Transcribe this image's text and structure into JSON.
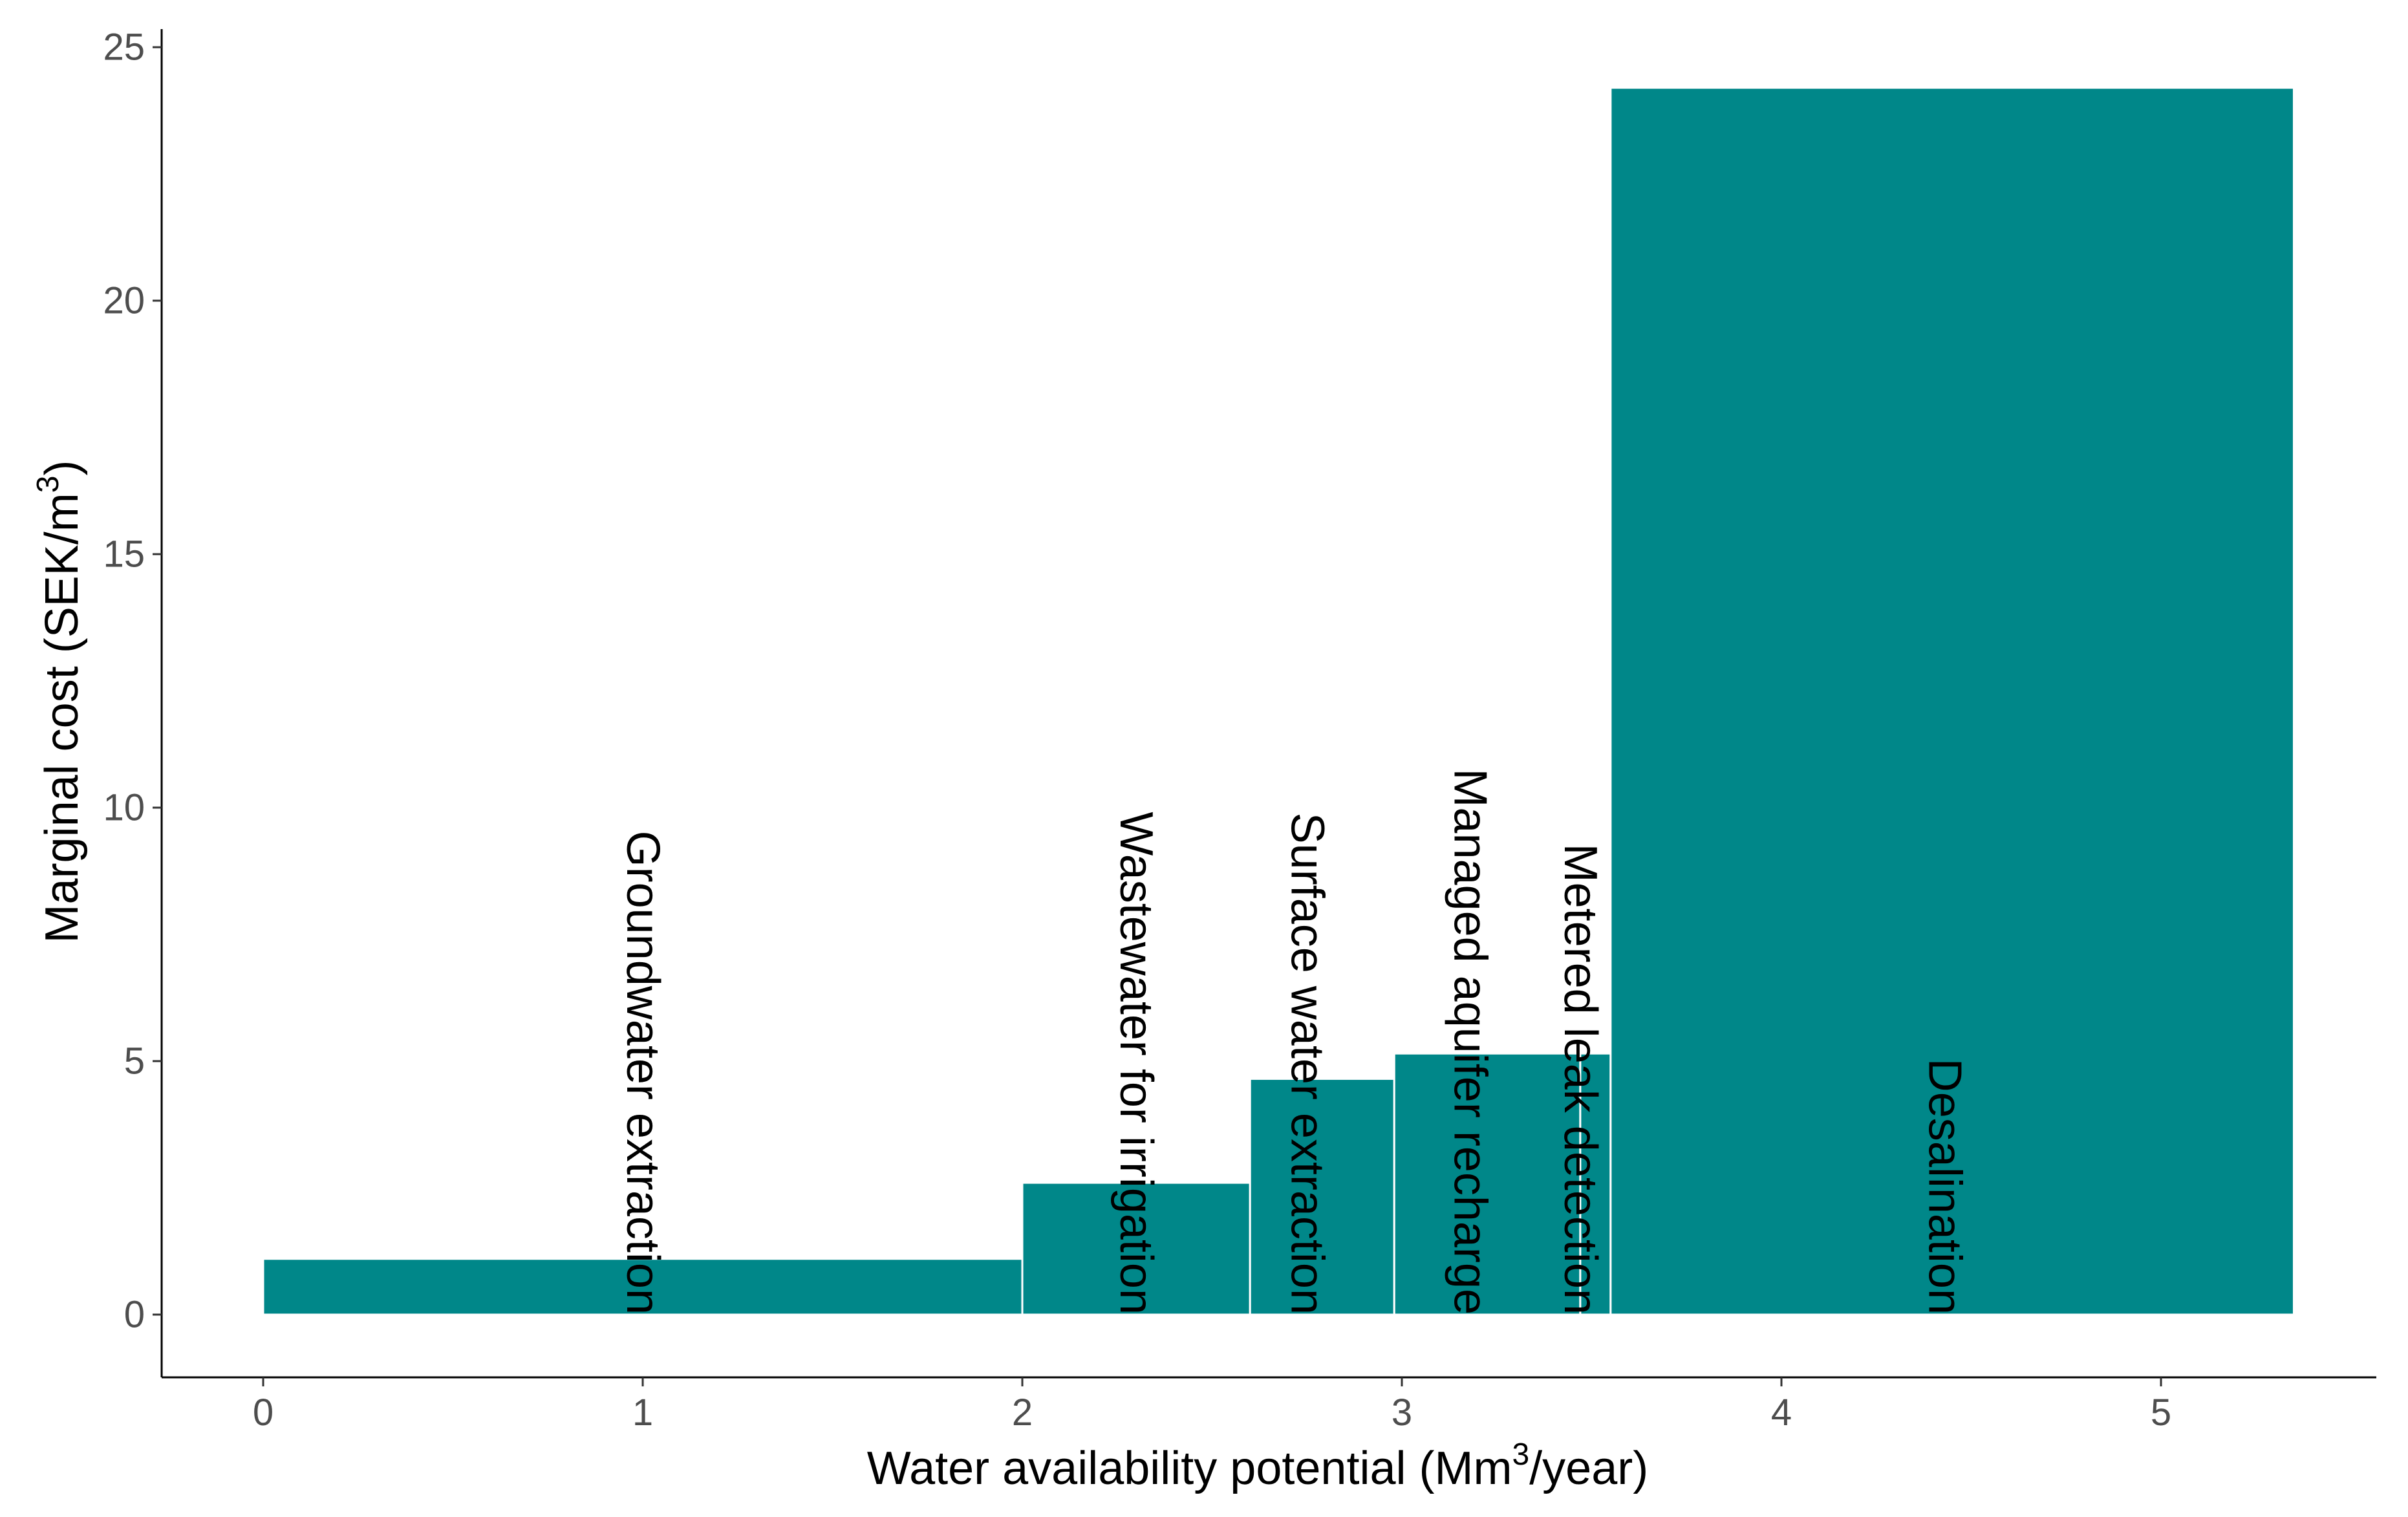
{
  "chart_data": {
    "type": "bar",
    "subtype": "variable-width marginal cost curve",
    "title": "",
    "xlabel": {
      "prefix": "Water availability potential (Mm",
      "superscript": "3",
      "suffix": "/year)"
    },
    "ylabel": {
      "prefix": "Marginal cost (SEK/m",
      "superscript": "3",
      "suffix": ")"
    },
    "xlim": [
      0,
      5.55
    ],
    "ylim": [
      0,
      25.5
    ],
    "x_ticks": [
      "0",
      "1",
      "2",
      "3",
      "4",
      "5"
    ],
    "y_ticks": [
      "0",
      "5",
      "10",
      "15",
      "20",
      "25"
    ],
    "grid": false,
    "legend": "none",
    "bar_color": "#008789",
    "bar_outline_color": "#ffffff",
    "bars": [
      {
        "label": "Groundwater extraction",
        "x_start": 0.0,
        "x_end": 2.0,
        "value": 1.1
      },
      {
        "label": "Wastewater for irrigation",
        "x_start": 2.0,
        "x_end": 2.6,
        "value": 2.6
      },
      {
        "label": "Surface water extraction",
        "x_start": 2.6,
        "x_end": 2.98,
        "value": 4.65
      },
      {
        "label": "Managed aquifer recharge",
        "x_start": 2.98,
        "x_end": 3.47,
        "value": 5.15
      },
      {
        "label": "Metered leak detection",
        "x_start": 3.47,
        "x_end": 3.55,
        "value": 5.15
      },
      {
        "label": "Desalination",
        "x_start": 3.55,
        "x_end": 5.35,
        "value": 24.2
      }
    ]
  }
}
